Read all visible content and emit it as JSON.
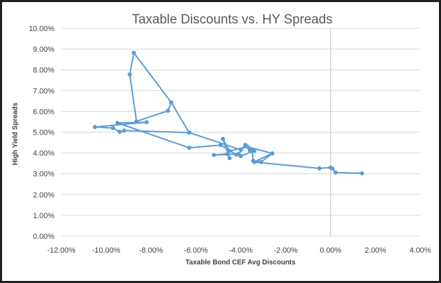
{
  "chart_data": {
    "type": "scatter",
    "connected": true,
    "title": "Taxable Discounts vs. HY Spreads",
    "xlabel": "Taxable Bond CEF Avg Discounts",
    "ylabel": "High Yield Spreads",
    "xlim": [
      -0.12,
      0.04
    ],
    "ylim": [
      0.0,
      0.1
    ],
    "x_ticks": [
      -0.12,
      -0.1,
      -0.08,
      -0.06,
      -0.04,
      -0.02,
      0.0,
      0.02,
      0.04
    ],
    "y_ticks": [
      0.0,
      0.01,
      0.02,
      0.03,
      0.04,
      0.05,
      0.06,
      0.07,
      0.08,
      0.09,
      0.1
    ],
    "x_tick_labels": [
      "-12.00%",
      "-10.00%",
      "-8.00%",
      "-6.00%",
      "-4.00%",
      "-2.00%",
      "0.00%",
      "2.00%",
      "4.00%"
    ],
    "y_tick_labels": [
      "0.00%",
      "1.00%",
      "2.00%",
      "3.00%",
      "4.00%",
      "5.00%",
      "6.00%",
      "7.00%",
      "8.00%",
      "9.00%",
      "10.00%"
    ],
    "grid": "horizontal",
    "series_color": "#5b9bd5",
    "points": [
      {
        "x": 0.014,
        "y": 0.0302
      },
      {
        "x": 0.0022,
        "y": 0.0306
      },
      {
        "x": 0.0008,
        "y": 0.0325
      },
      {
        "x": 0.0,
        "y": 0.033
      },
      {
        "x": -0.005,
        "y": 0.0326
      },
      {
        "x": -0.034,
        "y": 0.0356
      },
      {
        "x": -0.026,
        "y": 0.0398
      },
      {
        "x": -0.037,
        "y": 0.043
      },
      {
        "x": -0.045,
        "y": 0.041
      },
      {
        "x": -0.048,
        "y": 0.0468
      },
      {
        "x": -0.045,
        "y": 0.0375
      },
      {
        "x": -0.046,
        "y": 0.0395
      },
      {
        "x": -0.052,
        "y": 0.039
      },
      {
        "x": -0.041,
        "y": 0.0395
      },
      {
        "x": -0.038,
        "y": 0.0438
      },
      {
        "x": -0.036,
        "y": 0.0412
      },
      {
        "x": -0.034,
        "y": 0.041
      },
      {
        "x": -0.04,
        "y": 0.0385
      },
      {
        "x": -0.042,
        "y": 0.0392
      },
      {
        "x": -0.049,
        "y": 0.0438
      },
      {
        "x": -0.063,
        "y": 0.0425
      },
      {
        "x": -0.095,
        "y": 0.0545
      },
      {
        "x": -0.082,
        "y": 0.0548
      },
      {
        "x": -0.105,
        "y": 0.0525
      },
      {
        "x": -0.097,
        "y": 0.052
      },
      {
        "x": -0.094,
        "y": 0.0502
      },
      {
        "x": -0.092,
        "y": 0.0508
      },
      {
        "x": -0.063,
        "y": 0.0498
      },
      {
        "x": -0.071,
        "y": 0.0643
      },
      {
        "x": -0.0725,
        "y": 0.0603
      },
      {
        "x": -0.0865,
        "y": 0.0552
      },
      {
        "x": -0.0895,
        "y": 0.0778
      },
      {
        "x": -0.0877,
        "y": 0.0882
      },
      {
        "x": -0.071,
        "y": 0.0643
      },
      {
        "x": -0.063,
        "y": 0.0498
      },
      {
        "x": -0.04,
        "y": 0.0415
      },
      {
        "x": -0.038,
        "y": 0.0438
      },
      {
        "x": -0.035,
        "y": 0.0412
      },
      {
        "x": -0.0345,
        "y": 0.0362
      },
      {
        "x": -0.031,
        "y": 0.0356
      },
      {
        "x": -0.026,
        "y": 0.0398
      }
    ]
  }
}
